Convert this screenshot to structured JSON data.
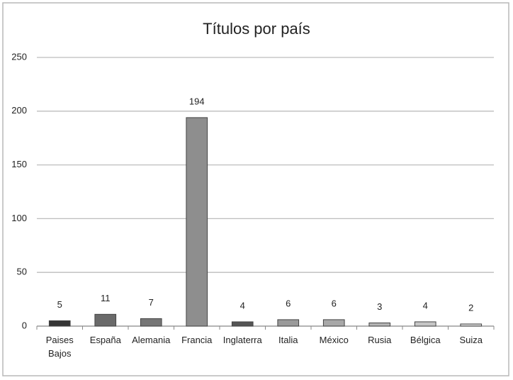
{
  "chart_data": {
    "type": "bar",
    "title": "Títulos por país",
    "categories": [
      "Paises Bajos",
      "España",
      "Alemania",
      "Francia",
      "Inglaterra",
      "Italia",
      "México",
      "Rusia",
      "Bélgica",
      "Suiza"
    ],
    "values": [
      5,
      11,
      7,
      194,
      4,
      6,
      6,
      3,
      4,
      2
    ],
    "colors": [
      "#353535",
      "#6a6a6a",
      "#767676",
      "#8e8e8e",
      "#555555",
      "#9a9a9a",
      "#a8a8a8",
      "#b4b4b4",
      "#c6c6c6",
      "#d6d6d6"
    ],
    "ylim": [
      0,
      250
    ],
    "yticks": [
      0,
      50,
      100,
      150,
      200,
      250
    ],
    "grid": true
  }
}
